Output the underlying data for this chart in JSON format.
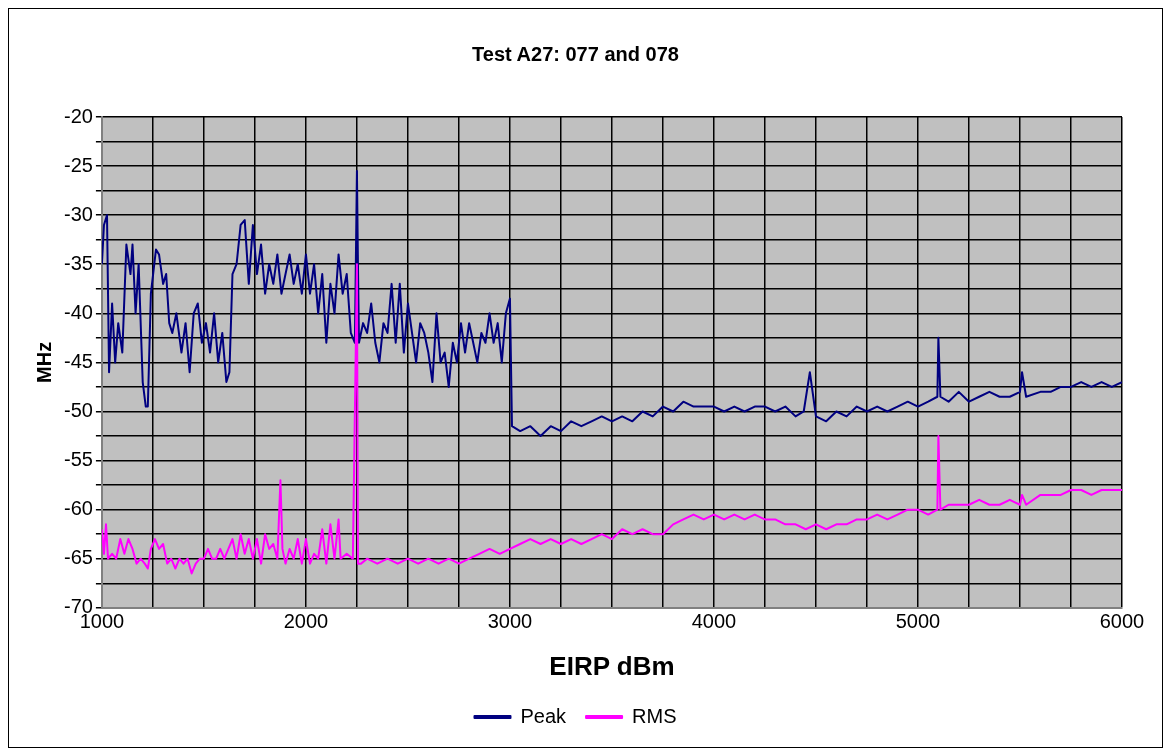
{
  "chart_data": {
    "type": "line",
    "title": "Test A27: 077 and 078",
    "xlabel": "EIRP dBm",
    "ylabel": "MHz",
    "xlim": [
      1000,
      6000
    ],
    "ylim": [
      -70,
      -20
    ],
    "xticks": [
      1000,
      {
        "value": 1250,
        "label": null
      },
      {
        "value": 1500,
        "label": null
      },
      {
        "value": 1750,
        "label": null
      },
      2000,
      {
        "value": 2250,
        "label": null
      },
      {
        "value": 2500,
        "label": null
      },
      {
        "value": 2750,
        "label": null
      },
      3000,
      {
        "value": 3250,
        "label": null
      },
      {
        "value": 3500,
        "label": null
      },
      {
        "value": 3750,
        "label": null
      },
      4000,
      {
        "value": 4250,
        "label": null
      },
      {
        "value": 4500,
        "label": null
      },
      {
        "value": 4750,
        "label": null
      },
      5000,
      {
        "value": 5250,
        "label": null
      },
      {
        "value": 5500,
        "label": null
      },
      {
        "value": 5750,
        "label": null
      },
      6000
    ],
    "yticks": [
      -70,
      {
        "value": -67.5,
        "label": null
      },
      -65,
      {
        "value": -62.5,
        "label": null
      },
      -60,
      {
        "value": -57.5,
        "label": null
      },
      -55,
      {
        "value": -52.5,
        "label": null
      },
      -50,
      {
        "value": -47.5,
        "label": null
      },
      -45,
      {
        "value": -42.5,
        "label": null
      },
      -40,
      {
        "value": -37.5,
        "label": null
      },
      -35,
      {
        "value": -32.5,
        "label": null
      },
      -30,
      {
        "value": -27.5,
        "label": null
      },
      -25,
      {
        "value": -22.5,
        "label": null
      },
      -20
    ],
    "grid": true,
    "legend": "bottom",
    "marker": "none",
    "line_style": "solid",
    "series": [
      {
        "name": "Peak",
        "color": "#000080",
        "x": [
          1000,
          1010,
          1025,
          1035,
          1050,
          1065,
          1080,
          1100,
          1120,
          1140,
          1150,
          1165,
          1180,
          1200,
          1215,
          1225,
          1240,
          1265,
          1280,
          1300,
          1315,
          1330,
          1345,
          1365,
          1390,
          1410,
          1430,
          1450,
          1470,
          1490,
          1510,
          1530,
          1550,
          1570,
          1590,
          1610,
          1625,
          1640,
          1660,
          1680,
          1700,
          1720,
          1740,
          1760,
          1780,
          1800,
          1820,
          1840,
          1860,
          1880,
          1900,
          1920,
          1940,
          1960,
          1980,
          2000,
          2020,
          2040,
          2060,
          2080,
          2100,
          2120,
          2140,
          2160,
          2180,
          2200,
          2220,
          2240,
          2250,
          2255,
          2260,
          2280,
          2300,
          2320,
          2340,
          2360,
          2380,
          2400,
          2420,
          2440,
          2460,
          2480,
          2500,
          2520,
          2540,
          2560,
          2580,
          2600,
          2620,
          2640,
          2660,
          2680,
          2700,
          2720,
          2740,
          2760,
          2780,
          2800,
          2820,
          2840,
          2860,
          2880,
          2900,
          2920,
          2940,
          2960,
          2980,
          3000,
          3010,
          3050,
          3100,
          3150,
          3200,
          3250,
          3300,
          3350,
          3400,
          3450,
          3500,
          3550,
          3600,
          3650,
          3700,
          3750,
          3800,
          3850,
          3900,
          3950,
          4000,
          4050,
          4100,
          4150,
          4200,
          4250,
          4300,
          4350,
          4400,
          4440,
          4470,
          4500,
          4550,
          4600,
          4650,
          4700,
          4750,
          4800,
          4850,
          4900,
          4950,
          5000,
          5050,
          5095,
          5100,
          5110,
          5150,
          5200,
          5250,
          5300,
          5350,
          5400,
          5450,
          5500,
          5510,
          5530,
          5600,
          5650,
          5700,
          5750,
          5800,
          5850,
          5900,
          5950,
          6000
        ],
        "values": [
          -35,
          -31,
          -30,
          -46,
          -39,
          -45,
          -41,
          -44,
          -33,
          -36,
          -33,
          -40,
          -35,
          -47,
          -49.5,
          -49.5,
          -38,
          -33.5,
          -34,
          -37,
          -36,
          -41,
          -42,
          -40,
          -44,
          -41,
          -46,
          -40,
          -39,
          -43,
          -41,
          -44,
          -40,
          -45,
          -42,
          -47,
          -46,
          -36,
          -35,
          -31,
          -30.5,
          -37,
          -31,
          -36,
          -33,
          -38,
          -35,
          -37,
          -34,
          -38,
          -36,
          -34,
          -37,
          -35,
          -38,
          -34,
          -38,
          -35,
          -40,
          -36,
          -43,
          -37,
          -40,
          -34,
          -38,
          -36,
          -42,
          -43,
          -25.5,
          -35,
          -43,
          -41,
          -42,
          -39,
          -43,
          -45,
          -41,
          -42,
          -37,
          -43,
          -37,
          -44,
          -39,
          -42,
          -45,
          -41,
          -42,
          -44,
          -47,
          -40,
          -45,
          -44,
          -47.5,
          -43,
          -45,
          -41,
          -44,
          -41,
          -43,
          -45,
          -42,
          -43,
          -40,
          -43,
          -41,
          -45,
          -40,
          -38.5,
          -51.5,
          -52,
          -51.5,
          -52.5,
          -51.5,
          -52,
          -51,
          -51.5,
          -51,
          -50.5,
          -51,
          -50.5,
          -51,
          -50,
          -50.5,
          -49.5,
          -50,
          -49,
          -49.5,
          -49.5,
          -49.5,
          -50,
          -49.5,
          -50,
          -49.5,
          -49.5,
          -50,
          -49.5,
          -50.5,
          -50,
          -46,
          -50.5,
          -51,
          -50,
          -50.5,
          -49.5,
          -50,
          -49.5,
          -50,
          -49.5,
          -49,
          -49.5,
          -49,
          -48.5,
          -42.5,
          -48.5,
          -49,
          -48,
          -49,
          -48.5,
          -48,
          -48.5,
          -48.5,
          -48,
          -46,
          -48.5,
          -48,
          -48,
          -47.5,
          -47.5,
          -47,
          -47.5,
          -47,
          -47.5,
          -47
        ]
      },
      {
        "name": "RMS",
        "color": "#ff00ff",
        "x": [
          1000,
          1010,
          1020,
          1030,
          1050,
          1070,
          1090,
          1110,
          1130,
          1150,
          1170,
          1190,
          1210,
          1225,
          1240,
          1260,
          1280,
          1300,
          1320,
          1340,
          1360,
          1380,
          1400,
          1420,
          1440,
          1460,
          1480,
          1500,
          1520,
          1540,
          1560,
          1580,
          1600,
          1620,
          1640,
          1660,
          1680,
          1700,
          1720,
          1740,
          1760,
          1780,
          1800,
          1820,
          1840,
          1860,
          1875,
          1885,
          1900,
          1920,
          1940,
          1960,
          1980,
          2000,
          2020,
          2040,
          2060,
          2080,
          2100,
          2120,
          2140,
          2160,
          2170,
          2200,
          2230,
          2250,
          2255,
          2270,
          2300,
          2350,
          2400,
          2450,
          2500,
          2550,
          2600,
          2650,
          2700,
          2750,
          2800,
          2850,
          2900,
          2950,
          3000,
          3050,
          3100,
          3150,
          3200,
          3250,
          3300,
          3350,
          3400,
          3450,
          3500,
          3550,
          3600,
          3650,
          3700,
          3750,
          3800,
          3850,
          3900,
          3950,
          4000,
          4050,
          4100,
          4150,
          4200,
          4250,
          4300,
          4350,
          4400,
          4450,
          4500,
          4550,
          4600,
          4650,
          4700,
          4750,
          4800,
          4850,
          4900,
          4950,
          5000,
          5050,
          5095,
          5100,
          5110,
          5150,
          5200,
          5250,
          5300,
          5350,
          5400,
          5450,
          5500,
          5510,
          5530,
          5600,
          5650,
          5700,
          5750,
          5800,
          5850,
          5900,
          5950,
          6000
        ],
        "values": [
          -62,
          -64.5,
          -61.5,
          -65,
          -64.5,
          -65,
          -63,
          -64.5,
          -63,
          -64,
          -65.5,
          -65,
          -65.5,
          -66,
          -64,
          -63,
          -64,
          -63.5,
          -65.5,
          -65,
          -66,
          -65,
          -65.5,
          -65,
          -66.5,
          -65.5,
          -65,
          -65,
          -64,
          -65,
          -65,
          -64,
          -65,
          -64,
          -63,
          -65,
          -62.5,
          -64.5,
          -63,
          -65,
          -63,
          -65.5,
          -62.5,
          -64,
          -63.5,
          -65,
          -57,
          -64,
          -65.5,
          -64,
          -65,
          -63,
          -65.5,
          -63,
          -65.5,
          -64.5,
          -65,
          -62,
          -65.5,
          -61.5,
          -65,
          -61,
          -65,
          -64.5,
          -65,
          -35,
          -65.5,
          -65.5,
          -65,
          -65.5,
          -65,
          -65.5,
          -65,
          -65.5,
          -65,
          -65.5,
          -65,
          -65.5,
          -65,
          -64.5,
          -64,
          -64.5,
          -64,
          -63.5,
          -63,
          -63.5,
          -63,
          -63.5,
          -63,
          -63.5,
          -63,
          -62.5,
          -63,
          -62,
          -62.5,
          -62,
          -62.5,
          -62.5,
          -61.5,
          -61,
          -60.5,
          -61,
          -60.5,
          -61,
          -60.5,
          -61,
          -60.5,
          -61,
          -61,
          -61.5,
          -61.5,
          -62,
          -61.5,
          -62,
          -61.5,
          -61.5,
          -61,
          -61,
          -60.5,
          -61,
          -60.5,
          -60,
          -60,
          -60.5,
          -60,
          -52.5,
          -60,
          -59.5,
          -59.5,
          -59.5,
          -59,
          -59.5,
          -59.5,
          -59,
          -59.5,
          -58.5,
          -59.5,
          -58.5,
          -58.5,
          -58.5,
          -58,
          -58,
          -58.5,
          -58,
          -58,
          -58
        ]
      }
    ]
  }
}
